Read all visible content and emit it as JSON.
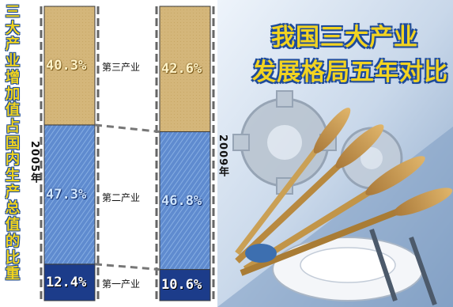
{
  "chart_data": {
    "type": "bar",
    "stacked": true,
    "normalized": true,
    "title": "我国三大产业发展格局五年对比",
    "subtitle": "三大产业增加值占国内生产总值的比重",
    "categories": [
      "2005年",
      "2009年"
    ],
    "series": [
      {
        "name": "第一产业",
        "values": [
          12.4,
          10.6
        ],
        "labels": [
          "12.4%",
          "10.6%"
        ]
      },
      {
        "name": "第二产业",
        "values": [
          47.3,
          46.8
        ],
        "labels": [
          "47.3%",
          "46.8%"
        ]
      },
      {
        "name": "第三产业",
        "values": [
          40.3,
          42.6
        ],
        "labels": [
          "40.3%",
          "42.6%"
        ]
      }
    ],
    "colors": {
      "primary": "#1c3c8a",
      "secondary": "#5b86c8",
      "tertiary": "#d2b478",
      "title_fill": "#f2d321",
      "title_outline": "#1d4a9a"
    }
  },
  "title_chars": [
    "三",
    "大",
    "产",
    "业",
    "增",
    "加",
    "值",
    "占",
    "国",
    "内",
    "生",
    "产",
    "总",
    "值",
    "的",
    "比",
    "重"
  ]
}
